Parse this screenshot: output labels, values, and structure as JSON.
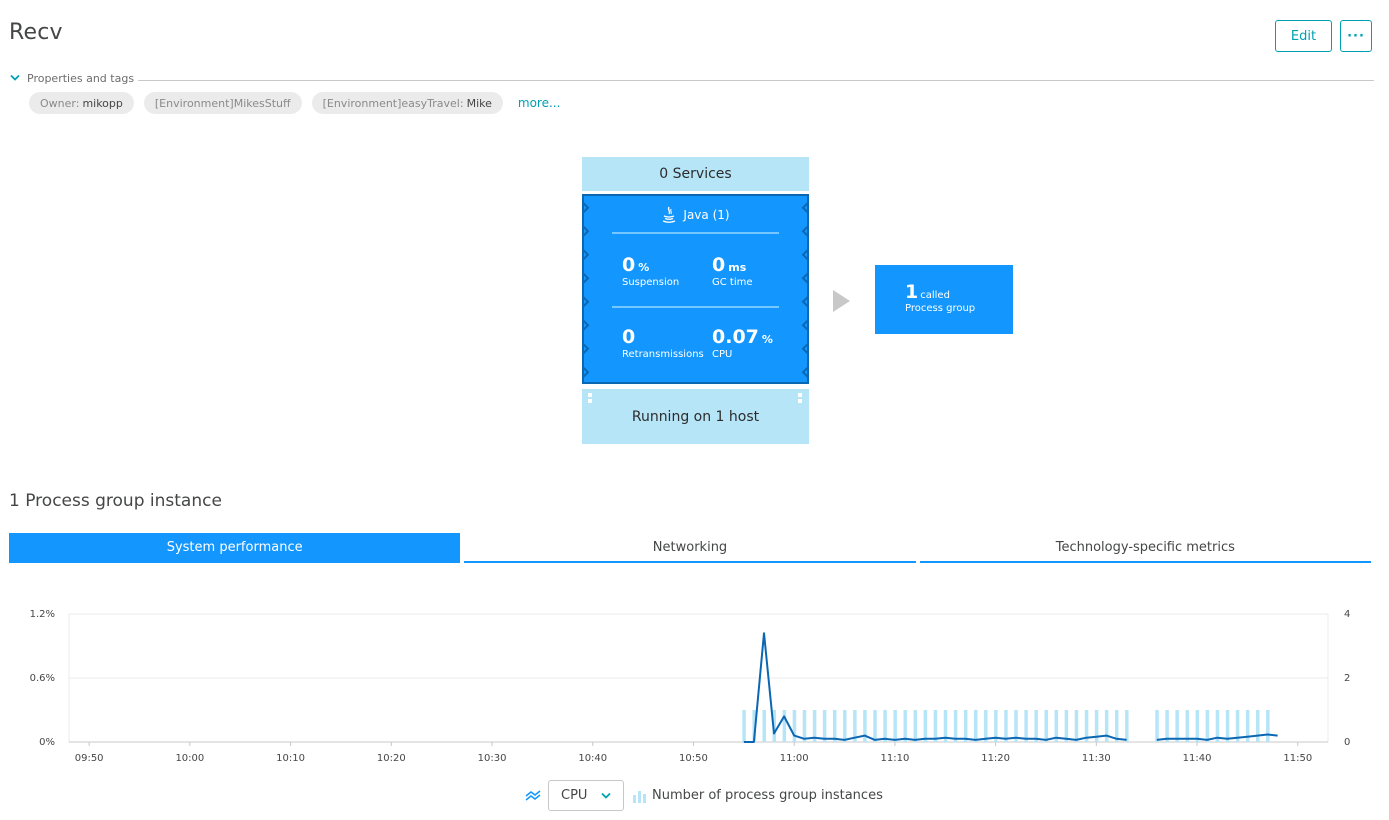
{
  "page": {
    "title": "Recv"
  },
  "toolbar": {
    "edit_label": "Edit",
    "more_label": "···"
  },
  "properties": {
    "label": "Properties and tags",
    "tags": [
      {
        "key": "Owner:",
        "value": "mikopp"
      },
      {
        "key": "[Environment]MikesStuff",
        "value": ""
      },
      {
        "key": "[Environment]easyTravel:",
        "value": "Mike"
      }
    ],
    "more_label": "more..."
  },
  "diagram": {
    "services_label": "0 Services",
    "process": {
      "title": "Java (1)",
      "metrics": [
        {
          "value": "0",
          "unit": "%",
          "label": "Suspension"
        },
        {
          "value": "0",
          "unit": "ms",
          "label": "GC time"
        },
        {
          "value": "0",
          "unit": "",
          "label": "Retransmissions"
        },
        {
          "value": "0.07",
          "unit": "%",
          "label": "CPU"
        }
      ]
    },
    "host_label": "Running on 1 host",
    "called": {
      "count": "1",
      "word": "called",
      "label": "Process group"
    }
  },
  "instances": {
    "title": "1 Process group instance"
  },
  "tabs": [
    {
      "label": "System performance",
      "active": true
    },
    {
      "label": "Networking",
      "active": false
    },
    {
      "label": "Technology-specific metrics",
      "active": false
    }
  ],
  "colors": {
    "accent": "#1496ff",
    "dark_line": "#0c67b3",
    "light_fill": "#b6e5f8",
    "teal": "#00a1b2"
  },
  "chart_data": {
    "type": "line",
    "x": [
      "09:50",
      "10:00",
      "10:10",
      "10:20",
      "10:30",
      "10:40",
      "10:50",
      "11:00",
      "11:10",
      "11:20",
      "11:30",
      "11:40",
      "11:50"
    ],
    "y_left_ticks": [
      "1.2%",
      "0.6%",
      "0%"
    ],
    "y_right_ticks": [
      "4",
      "2",
      "0"
    ],
    "ylim_left": [
      0,
      1.2
    ],
    "ylim_right": [
      0,
      4
    ],
    "grid": true,
    "series": [
      {
        "name": "CPU",
        "axis": "left",
        "kind": "line",
        "points": [
          [
            "10:55",
            0
          ],
          [
            "10:56",
            0.0
          ],
          [
            "10:57",
            1.02
          ],
          [
            "10:58",
            0.08
          ],
          [
            "10:59",
            0.24
          ],
          [
            "11:00",
            0.06
          ],
          [
            "11:01",
            0.03
          ],
          [
            "11:02",
            0.04
          ],
          [
            "11:03",
            0.03
          ],
          [
            "11:04",
            0.03
          ],
          [
            "11:05",
            0.02
          ],
          [
            "11:06",
            0.04
          ],
          [
            "11:07",
            0.06
          ],
          [
            "11:08",
            0.02
          ],
          [
            "11:09",
            0.03
          ],
          [
            "11:10",
            0.02
          ],
          [
            "11:11",
            0.03
          ],
          [
            "11:12",
            0.02
          ],
          [
            "11:13",
            0.03
          ],
          [
            "11:14",
            0.03
          ],
          [
            "11:15",
            0.04
          ],
          [
            "11:16",
            0.03
          ],
          [
            "11:17",
            0.03
          ],
          [
            "11:18",
            0.02
          ],
          [
            "11:19",
            0.03
          ],
          [
            "11:20",
            0.04
          ],
          [
            "11:21",
            0.03
          ],
          [
            "11:22",
            0.04
          ],
          [
            "11:23",
            0.03
          ],
          [
            "11:24",
            0.03
          ],
          [
            "11:25",
            0.02
          ],
          [
            "11:26",
            0.04
          ],
          [
            "11:27",
            0.03
          ],
          [
            "11:28",
            0.02
          ],
          [
            "11:29",
            0.04
          ],
          [
            "11:30",
            0.05
          ],
          [
            "11:31",
            0.06
          ],
          [
            "11:32",
            0.03
          ],
          [
            "11:33",
            0.02
          ],
          [
            "11:36",
            0.02
          ],
          [
            "11:37",
            0.03
          ],
          [
            "11:38",
            0.03
          ],
          [
            "11:39",
            0.03
          ],
          [
            "11:40",
            0.03
          ],
          [
            "11:41",
            0.02
          ],
          [
            "11:42",
            0.04
          ],
          [
            "11:43",
            0.03
          ],
          [
            "11:44",
            0.04
          ],
          [
            "11:45",
            0.05
          ],
          [
            "11:46",
            0.06
          ],
          [
            "11:47",
            0.07
          ],
          [
            "11:48",
            0.06
          ]
        ]
      },
      {
        "name": "Number of process group instances",
        "axis": "right",
        "kind": "bar",
        "value": 1,
        "ranges": [
          [
            "10:55",
            "11:33"
          ],
          [
            "11:36",
            "11:47"
          ]
        ]
      }
    ]
  },
  "legend": {
    "metric_select": "CPU",
    "bar_label": "Number of process group instances"
  }
}
